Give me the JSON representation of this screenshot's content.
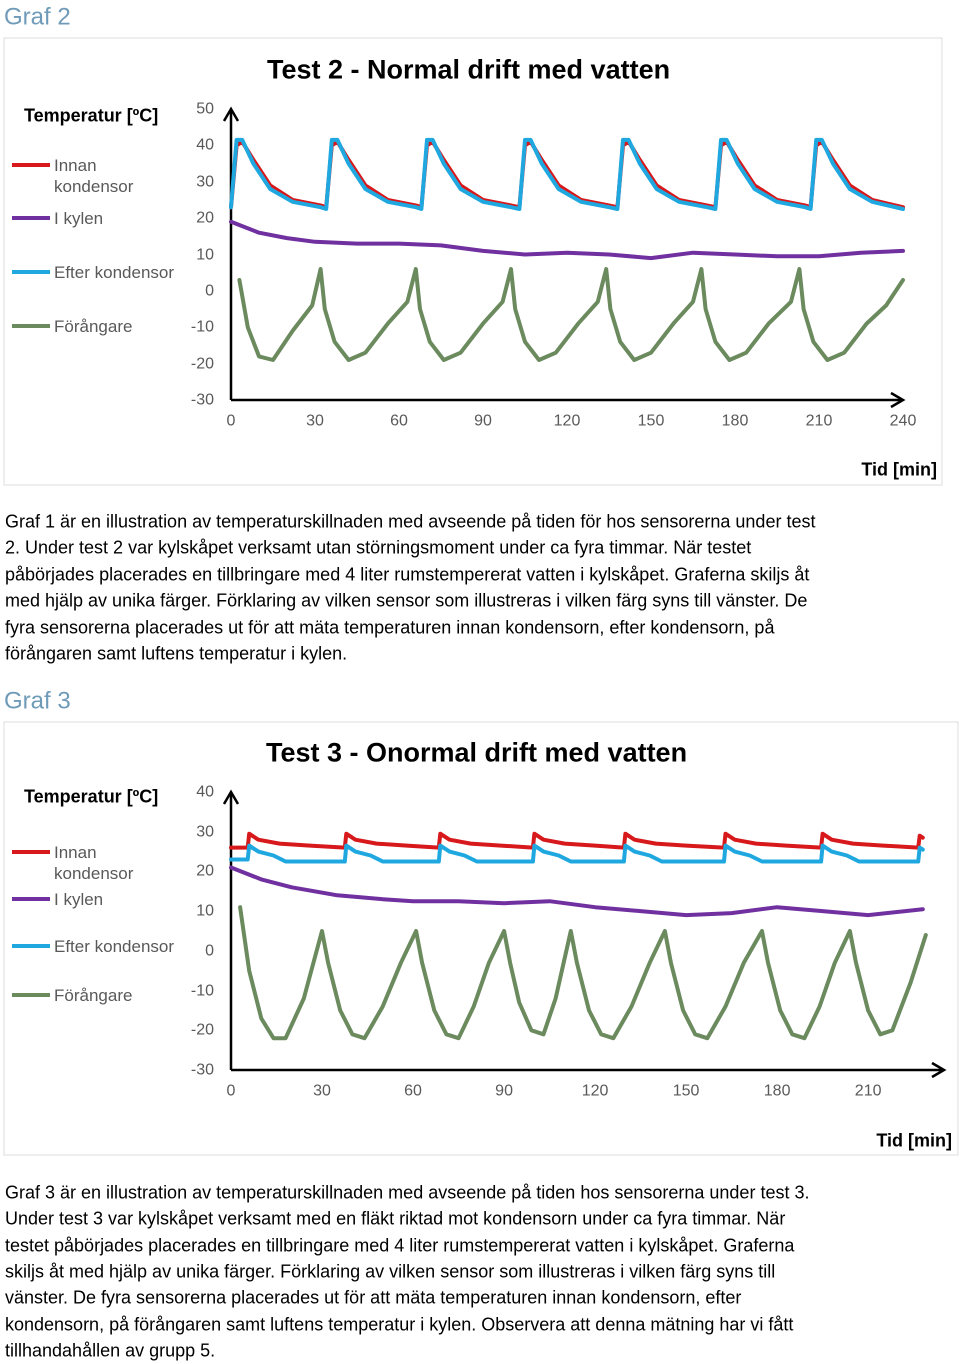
{
  "headings": [
    "Graf 2",
    "Graf 3"
  ],
  "chart_data": [
    {
      "type": "line",
      "title": "Test 2 - Normal drift med vatten",
      "y_label": "Temperatur [ºC]",
      "x_label": "Tid [min]",
      "xlim": [
        0,
        240
      ],
      "xticks": [
        0,
        30,
        60,
        90,
        120,
        150,
        180,
        210,
        240
      ],
      "ylim": [
        -30,
        50
      ],
      "yticks": [
        50,
        40,
        30,
        20,
        10,
        0,
        -10,
        -20,
        -30
      ],
      "series": [
        {
          "name": "Innan kondensor",
          "color": "#d7191c",
          "x": [
            0,
            2,
            4,
            8,
            14,
            22,
            32,
            34,
            36,
            38,
            42,
            48,
            56,
            66,
            68,
            70,
            72,
            76,
            82,
            90,
            100,
            103,
            105,
            107,
            111,
            117,
            125,
            135,
            138,
            140,
            142,
            146,
            152,
            160,
            170,
            173,
            175,
            177,
            181,
            187,
            195,
            205,
            207,
            209,
            211,
            215,
            221,
            229,
            240
          ],
          "values": [
            23,
            40,
            41,
            36,
            29,
            25,
            23.5,
            23,
            40,
            41,
            36,
            29,
            25,
            23.5,
            23,
            40,
            41,
            36,
            29,
            25,
            23.5,
            23,
            40,
            41,
            36,
            29,
            25,
            23.5,
            23,
            40,
            41,
            36,
            29,
            25,
            23.5,
            23,
            40,
            41,
            36,
            29,
            25,
            23.5,
            23,
            40,
            41,
            36,
            29,
            25,
            23
          ]
        },
        {
          "name": "I kylen",
          "color": "#7030a0",
          "x": [
            0,
            10,
            20,
            30,
            45,
            60,
            75,
            90,
            105,
            120,
            135,
            150,
            165,
            180,
            195,
            210,
            225,
            240
          ],
          "values": [
            19,
            16,
            14.5,
            13.5,
            13,
            13,
            12.5,
            11,
            10,
            10.5,
            10,
            9,
            10.5,
            10,
            9.5,
            9.5,
            10.5,
            11
          ]
        },
        {
          "name": "Efter kondensor",
          "color": "#1fa8e0",
          "x": [
            0,
            2,
            4,
            8,
            14,
            22,
            32,
            34,
            36,
            38,
            42,
            48,
            56,
            66,
            68,
            70,
            72,
            76,
            82,
            90,
            100,
            103,
            105,
            107,
            111,
            117,
            125,
            135,
            138,
            140,
            142,
            146,
            152,
            160,
            170,
            173,
            175,
            177,
            181,
            187,
            195,
            205,
            207,
            209,
            211,
            215,
            221,
            229,
            240
          ],
          "values": [
            23,
            41.5,
            41.5,
            35,
            28,
            24.5,
            23,
            22.5,
            41.5,
            41.5,
            35,
            28,
            24.5,
            23,
            22.5,
            41.5,
            41.5,
            35,
            28,
            24.5,
            23,
            22.5,
            41.5,
            41.5,
            35,
            28,
            24.5,
            23,
            22.5,
            41.5,
            41.5,
            35,
            28,
            24.5,
            23,
            22.5,
            41.5,
            41.5,
            35,
            28,
            24.5,
            23,
            22.5,
            41.5,
            41.5,
            35,
            28,
            24.5,
            22.5
          ]
        },
        {
          "name": "Förångare",
          "color": "#6b8a5e",
          "x": [
            3,
            6,
            10,
            15,
            22,
            29,
            32,
            33.5,
            37,
            42,
            48,
            56,
            63,
            66,
            67.5,
            71,
            76,
            82,
            90,
            97,
            100,
            101.5,
            105,
            110,
            116,
            124,
            131,
            134,
            135.5,
            139,
            144,
            150,
            158,
            165,
            168,
            169.5,
            173,
            178,
            184,
            192,
            200,
            203,
            204.5,
            208,
            213,
            219,
            227,
            234,
            240
          ],
          "values": [
            3,
            -10,
            -18,
            -19,
            -11,
            -4,
            6,
            -5,
            -14,
            -19,
            -17,
            -9,
            -3,
            6,
            -5,
            -14,
            -19,
            -17,
            -9,
            -3,
            6,
            -5,
            -14,
            -19,
            -17,
            -9,
            -3,
            6,
            -5,
            -14,
            -19,
            -17,
            -9,
            -3,
            6,
            -5,
            -14,
            -19,
            -17,
            -9,
            -3,
            6,
            -5,
            -14,
            -19,
            -17,
            -9,
            -4,
            3
          ]
        }
      ]
    },
    {
      "type": "line",
      "title": "Test 3 - Onormal drift med vatten",
      "y_label": "Temperatur [ºC]",
      "x_label": "Tid [min]",
      "xlim": [
        0,
        235
      ],
      "xticks": [
        0,
        30,
        60,
        90,
        120,
        150,
        180,
        210
      ],
      "ylim": [
        -30,
        40
      ],
      "yticks": [
        40,
        30,
        20,
        10,
        0,
        -10,
        -20,
        -30
      ],
      "series": [
        {
          "name": "Innan kondensor",
          "color": "#d7191c",
          "x": [
            0,
            5.5,
            6,
            9,
            16,
            26,
            37.5,
            38,
            41,
            48,
            58,
            68.5,
            69,
            72,
            79,
            89,
            99.5,
            100,
            103,
            110,
            120,
            129.5,
            130,
            133,
            140,
            150,
            162.5,
            163,
            166,
            173,
            183,
            194.5,
            195,
            198,
            205,
            215,
            226.5,
            227,
            228
          ],
          "values": [
            26,
            26,
            29.5,
            28,
            27,
            26.5,
            26,
            29.5,
            28,
            27,
            26.5,
            26,
            29.5,
            28,
            27,
            26.5,
            26,
            29.5,
            28,
            27,
            26.5,
            26,
            29.5,
            28,
            27,
            26.5,
            26,
            29.5,
            28,
            27,
            26.5,
            26,
            29.5,
            28,
            27,
            26.5,
            26,
            29,
            28.5
          ]
        },
        {
          "name": "I kylen",
          "color": "#7030a0",
          "x": [
            0,
            10,
            20,
            35,
            50,
            60,
            75,
            90,
            105,
            120,
            135,
            150,
            165,
            180,
            195,
            210,
            228
          ],
          "values": [
            21,
            18,
            16,
            14,
            13,
            12.5,
            12.5,
            12,
            12.5,
            11,
            10,
            9,
            9.5,
            11,
            10,
            9,
            10.5
          ]
        },
        {
          "name": "Efter kondensor",
          "color": "#1fa8e0",
          "x": [
            0,
            5.5,
            6,
            9,
            14,
            18,
            37.5,
            38,
            41,
            46,
            50,
            68.5,
            69,
            72,
            77,
            81,
            99.5,
            100,
            103,
            108,
            112,
            129.5,
            130,
            133,
            138,
            142,
            162.5,
            163,
            166,
            171,
            175,
            194.5,
            195,
            198,
            203,
            207,
            226.5,
            227,
            228
          ],
          "values": [
            23,
            23,
            26.5,
            25,
            24,
            22.5,
            22.5,
            26.5,
            25,
            24,
            22.5,
            22.5,
            26.5,
            25,
            24,
            22.5,
            22.5,
            26.5,
            25,
            24,
            22.5,
            22.5,
            26.5,
            25,
            24,
            22.5,
            22.5,
            26.5,
            25,
            24,
            22.5,
            22.5,
            26.5,
            25,
            24,
            22.5,
            22.5,
            26,
            25.5
          ]
        },
        {
          "name": "Förångare",
          "color": "#6b8a5e",
          "x": [
            3,
            6,
            10,
            14,
            18,
            24,
            30,
            32,
            36,
            40,
            44,
            50,
            56,
            61,
            63,
            67,
            71,
            75,
            80,
            85,
            90,
            92,
            95,
            99,
            103,
            107,
            112,
            114,
            118,
            122,
            126,
            132,
            138,
            143,
            145,
            149,
            153,
            157,
            163,
            169,
            175,
            177,
            181,
            185,
            189,
            194,
            199,
            204,
            206,
            210,
            214,
            218,
            224,
            229
          ],
          "values": [
            11,
            -5,
            -17,
            -22,
            -22,
            -12,
            5,
            -3,
            -15,
            -21,
            -22,
            -14,
            -3,
            5,
            -3,
            -15,
            -21,
            -22,
            -14,
            -3,
            5,
            -3,
            -13,
            -20,
            -21,
            -12,
            5,
            -3,
            -15,
            -21,
            -22,
            -14,
            -3,
            5,
            -3,
            -15,
            -21,
            -22,
            -14,
            -3,
            5,
            -3,
            -15,
            -21,
            -22,
            -14,
            -3,
            5,
            -3,
            -15,
            -21,
            -20,
            -8,
            4
          ]
        }
      ]
    }
  ],
  "paragraphs": [
    [
      "Graf 1 är en illustration av temperaturskillnaden med avseende på tiden för hos sensorerna under test",
      "2. Under test 2 var kylskåpet verksamt utan störningsmoment under ca fyra timmar. När testet",
      "påbörjades placerades en tillbringare med 4 liter rumstempererat vatten i kylskåpet. Graferna skiljs åt",
      "med hjälp av unika färger. Förklaring av vilken sensor som illustreras i vilken färg syns till vänster. De",
      "fyra sensorerna placerades ut för att mäta temperaturen innan kondensorn, efter kondensorn, på",
      "förångaren samt luftens temperatur i kylen."
    ],
    [
      "Graf 3 är en illustration av temperaturskillnaden med avseende på tiden hos sensorerna under test 3.",
      "Under test 3 var kylskåpet verksamt med en fläkt riktad mot kondensorn under ca fyra timmar. När",
      "testet påbörjades placerades en tillbringare med 4 liter rumstempererat vatten i kylskåpet. Graferna",
      "skiljs åt med hjälp av unika färger. Förklaring av vilken sensor som illustreras i vilken färg syns till",
      "vänster. De fyra sensorerna placerades ut för att mäta temperaturen innan kondensorn, efter",
      "kondensorn, på förångaren samt luftens temperatur i kylen. Observera att denna mätning har vi fått",
      "tillhandahållen av grupp 5."
    ]
  ]
}
